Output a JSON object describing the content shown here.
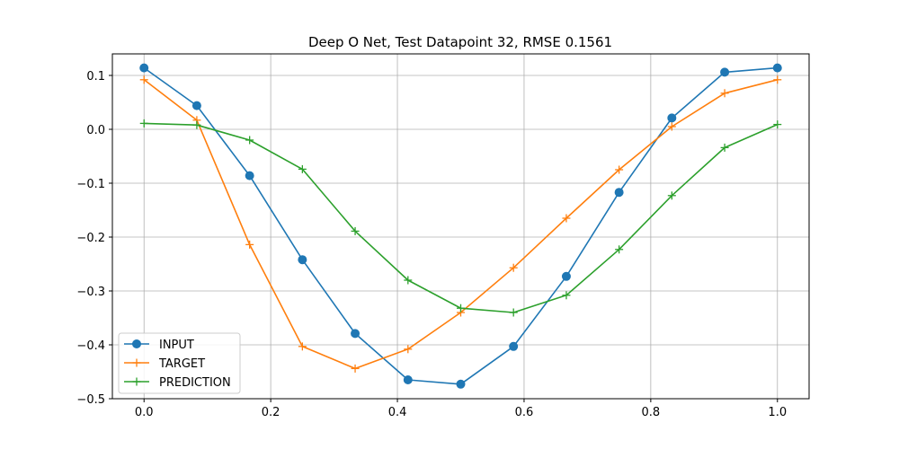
{
  "chart_data": {
    "type": "line",
    "title": "Deep O Net, Test Datapoint 32, RMSE 0.1561",
    "xlabel": "",
    "ylabel": "",
    "xlim": [
      -0.05,
      1.05
    ],
    "ylim": [
      -0.5,
      0.14
    ],
    "grid": true,
    "legend_position": "lower-left",
    "x_ticks": [
      0.0,
      0.2,
      0.4,
      0.6,
      0.8,
      1.0
    ],
    "x_tick_labels": [
      "0.0",
      "0.2",
      "0.4",
      "0.6",
      "0.8",
      "1.0"
    ],
    "y_ticks": [
      0.1,
      0.0,
      -0.1,
      -0.2,
      -0.3,
      -0.4,
      -0.5
    ],
    "y_tick_labels": [
      "0.1",
      "0.0",
      "−0.1",
      "−0.2",
      "−0.3",
      "−0.4",
      "−0.5"
    ],
    "x": [
      0.0,
      0.0833,
      0.1667,
      0.25,
      0.3333,
      0.4167,
      0.5,
      0.5833,
      0.6667,
      0.75,
      0.8333,
      0.9167,
      1.0
    ],
    "series": [
      {
        "name": "INPUT",
        "color": "#1f77b4",
        "marker": "circle",
        "values": [
          0.114,
          0.044,
          -0.086,
          -0.242,
          -0.379,
          -0.465,
          -0.473,
          -0.403,
          -0.273,
          -0.117,
          0.021,
          0.106,
          0.114
        ]
      },
      {
        "name": "TARGET",
        "color": "#ff7f0e",
        "marker": "plus",
        "values": [
          0.092,
          0.017,
          -0.214,
          -0.403,
          -0.444,
          -0.408,
          -0.34,
          -0.257,
          -0.165,
          -0.075,
          0.005,
          0.067,
          0.092
        ]
      },
      {
        "name": "PREDICTION",
        "color": "#2ca02c",
        "marker": "plus",
        "values": [
          0.011,
          0.008,
          -0.02,
          -0.074,
          -0.189,
          -0.28,
          -0.332,
          -0.34,
          -0.308,
          -0.223,
          -0.123,
          -0.034,
          0.009
        ]
      }
    ]
  }
}
